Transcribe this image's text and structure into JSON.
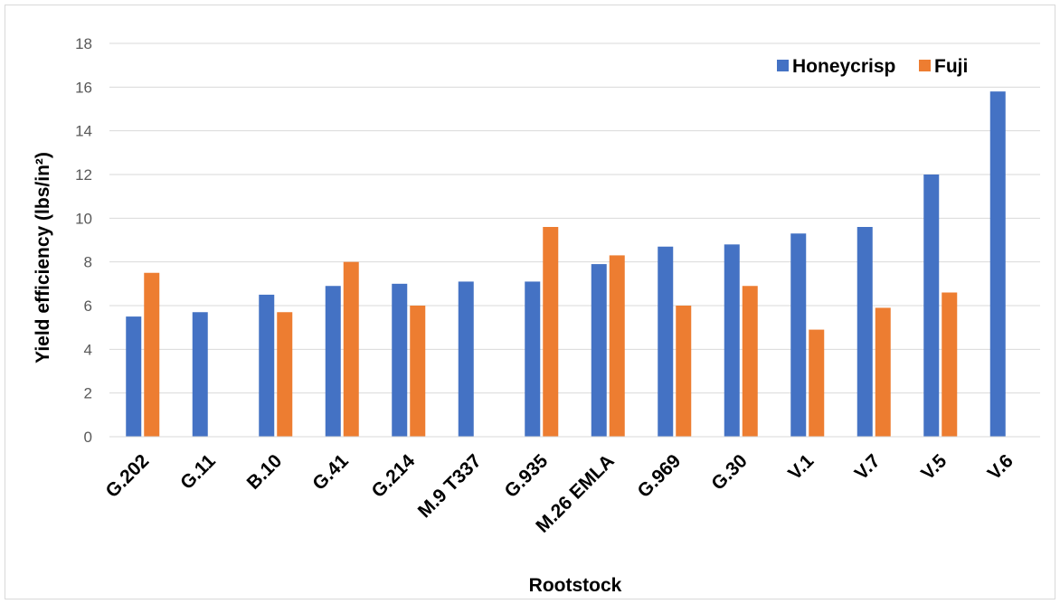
{
  "chart_data": {
    "type": "bar",
    "title": "",
    "xlabel": "Rootstock",
    "ylabel": "Yield efficiency (lbs/in²)",
    "ylim": [
      0,
      18
    ],
    "yticks": [
      0,
      2,
      4,
      6,
      8,
      10,
      12,
      14,
      16,
      18
    ],
    "grid": true,
    "legend_position": "top-right",
    "categories": [
      "G.202",
      "G.11",
      "B.10",
      "G.41",
      "G.214",
      "M.9 T337",
      "G.935",
      "M.26 EMLA",
      "G.969",
      "G.30",
      "V.1",
      "V.7",
      "V.5",
      "V.6"
    ],
    "series": [
      {
        "name": "Honeycrisp",
        "color": "#4472c4",
        "values": [
          5.5,
          5.7,
          6.5,
          6.9,
          7.0,
          7.1,
          7.1,
          7.9,
          8.7,
          8.8,
          9.3,
          9.6,
          12.0,
          15.8
        ]
      },
      {
        "name": "Fuji",
        "color": "#ed7d31",
        "values": [
          7.5,
          null,
          5.7,
          8.0,
          6.0,
          null,
          9.6,
          8.3,
          6.0,
          6.9,
          4.9,
          5.9,
          6.6,
          null
        ]
      }
    ]
  }
}
